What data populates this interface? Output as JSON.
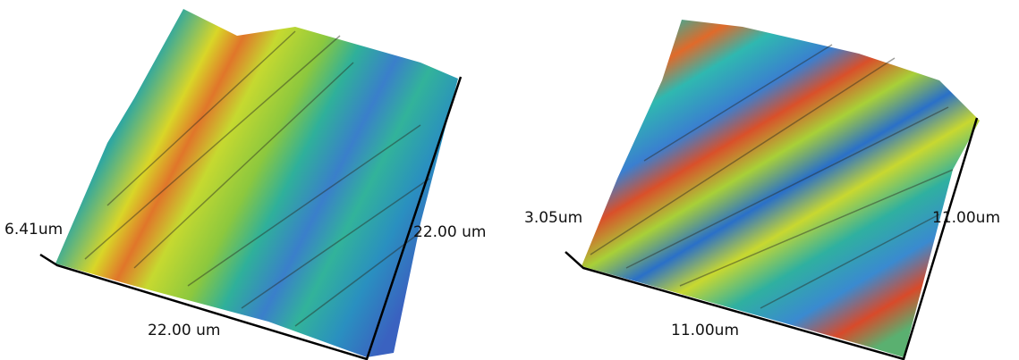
{
  "panels": [
    {
      "height_label": "6.41um",
      "x_label": "22.00 um",
      "y_label": "22.00 um"
    },
    {
      "height_label": "3.05um",
      "x_label": "11.00um",
      "y_label": "11.00um"
    }
  ]
}
